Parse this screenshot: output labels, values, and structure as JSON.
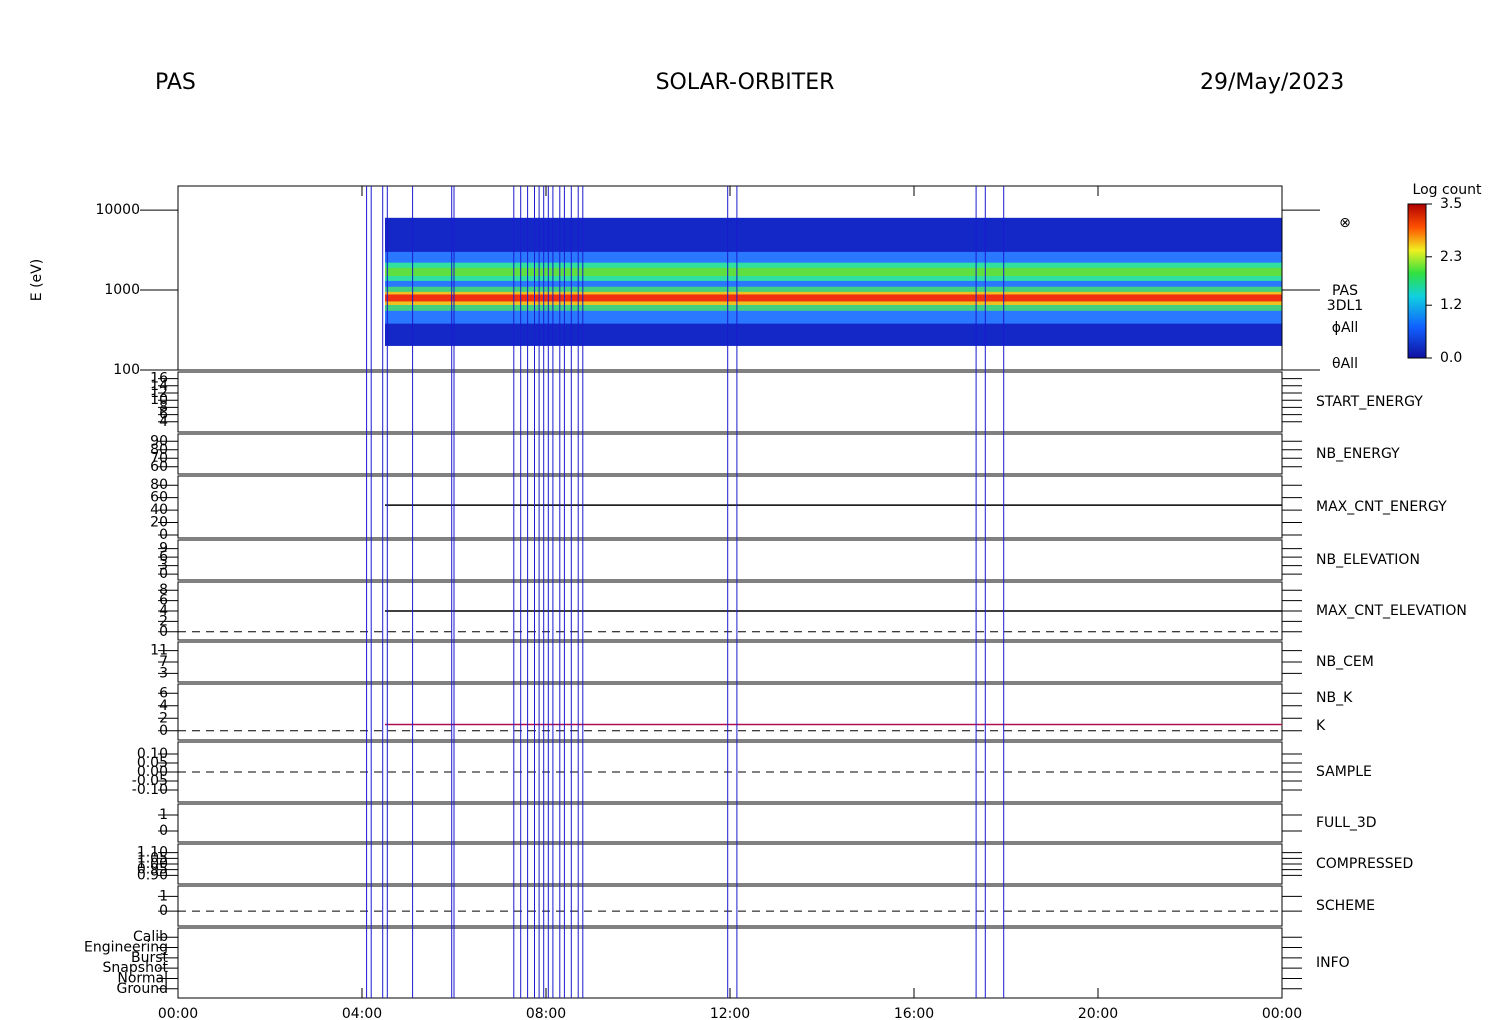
{
  "chart_data": {
    "type": "multi-panel",
    "header": {
      "left": "PAS",
      "center": "SOLAR-ORBITER",
      "right": "29/May/2023"
    },
    "xlim": [
      0,
      24
    ],
    "xticks": [
      {
        "value": 0,
        "label": "00:00"
      },
      {
        "value": 4,
        "label": "04:00"
      },
      {
        "value": 8,
        "label": "08:00"
      },
      {
        "value": 12,
        "label": "12:00"
      },
      {
        "value": 16,
        "label": "16:00"
      },
      {
        "value": 20,
        "label": "20:00"
      },
      {
        "value": 24,
        "label": "00:00"
      }
    ],
    "events": {
      "color": "#1a1ad0",
      "times": [
        4.1,
        4.2,
        4.45,
        4.55,
        5.1,
        5.95,
        6.0,
        7.3,
        7.45,
        7.6,
        7.75,
        7.85,
        7.95,
        8.05,
        8.15,
        8.3,
        8.4,
        8.55,
        8.7,
        8.8,
        11.95,
        12.15,
        17.35,
        17.55,
        17.95
      ]
    },
    "spectrogram": {
      "ylabel": "E (eV)",
      "log": true,
      "ylim": [
        100,
        20000
      ],
      "yticks": [
        100,
        1000,
        10000
      ],
      "start": 4.5,
      "bands": [
        {
          "range": [
            200,
            8000
          ],
          "color": "#1428c8"
        },
        {
          "range": [
            380,
            3000
          ],
          "color": "#2a78ff"
        },
        {
          "range": [
            1300,
            2200
          ],
          "color": "#30e0a0"
        },
        {
          "range": [
            1500,
            1900
          ],
          "color": "#60e040"
        },
        {
          "range": [
            550,
            1100
          ],
          "color": "#40d080"
        },
        {
          "range": [
            650,
            950
          ],
          "color": "#f0c020"
        },
        {
          "range": [
            720,
            880
          ],
          "color": "#f03010"
        }
      ],
      "symbol": "⊗",
      "side_labels": [
        "PAS",
        "3DL1",
        "ϕAll",
        "θAll"
      ],
      "colorbar": {
        "title": "Log count",
        "ticks": [
          {
            "value": 0,
            "label": "0.0"
          },
          {
            "value": 1.2,
            "label": "1.2"
          },
          {
            "value": 2.3,
            "label": "2.3"
          },
          {
            "value": 3.5,
            "label": "3.5"
          }
        ],
        "lim": [
          0,
          3.5
        ]
      }
    },
    "panels": [
      {
        "labels": [
          {
            "text": "START_ENERGY",
            "color": "#000000"
          }
        ],
        "ylim": [
          2,
          17
        ],
        "yticks": [
          4,
          6,
          8,
          10,
          12,
          14,
          16
        ]
      },
      {
        "labels": [
          {
            "text": "NB_ENERGY",
            "color": "#2020c0"
          }
        ],
        "ylim": [
          55,
          95
        ],
        "yticks": [
          60,
          70,
          80,
          90
        ]
      },
      {
        "labels": [
          {
            "text": "MAX_CNT_ENERGY",
            "color": "#000000"
          }
        ],
        "ylim": [
          0,
          90
        ],
        "yticks": [
          0,
          20,
          40,
          60,
          80
        ],
        "trace": {
          "from": 4.5,
          "value": 48,
          "color": "#000000"
        }
      },
      {
        "labels": [
          {
            "text": "NB_ELEVATION",
            "color": "#2020c0"
          }
        ],
        "ylim": [
          -1,
          11
        ],
        "yticks": [
          0,
          3,
          6,
          9
        ]
      },
      {
        "labels": [
          {
            "text": "MAX_CNT_ELEVATION",
            "color": "#000000"
          }
        ],
        "ylim": [
          -1,
          9
        ],
        "yticks": [
          0,
          2,
          4,
          6,
          8
        ],
        "dashed_zero": true,
        "trace": {
          "from": 4.5,
          "value": 4,
          "color": "#000000"
        }
      },
      {
        "labels": [
          {
            "text": "NB_CEM",
            "color": "#2020c0"
          }
        ],
        "ylim": [
          1,
          13
        ],
        "yticks": [
          3,
          7,
          11
        ]
      },
      {
        "labels": [
          {
            "text": "NB_K",
            "color": "#d00000"
          },
          {
            "text": "K",
            "color": "#2020c0"
          }
        ],
        "ylim": [
          -1,
          7
        ],
        "yticks": [
          0,
          2,
          4,
          6
        ],
        "dashed_zero": true,
        "trace": {
          "from": 4.5,
          "value": 1,
          "color": "#b01050"
        }
      },
      {
        "labels": [
          {
            "text": "SAMPLE",
            "color": "#2020c0"
          }
        ],
        "ylim": [
          -0.15,
          0.15
        ],
        "yticks": [
          {
            "value": -0.1,
            "label": "-0.10"
          },
          {
            "value": -0.05,
            "label": "-0.05"
          },
          {
            "value": 0,
            "label": "0.00"
          },
          {
            "value": 0.05,
            "label": "0.05"
          },
          {
            "value": 0.1,
            "label": "0.10"
          }
        ],
        "dashed_zero": true
      },
      {
        "labels": [
          {
            "text": "FULL_3D",
            "color": "#2020c0"
          }
        ],
        "ylim": [
          -0.5,
          1.5
        ],
        "yticks": [
          0,
          1
        ]
      },
      {
        "labels": [
          {
            "text": "COMPRESSED",
            "color": "#000000"
          }
        ],
        "ylim": [
          0.85,
          1.15
        ],
        "yticks": [
          {
            "value": 0.9,
            "label": "0.90"
          },
          {
            "value": 0.95,
            "label": "0.95"
          },
          {
            "value": 1,
            "label": "1.00"
          },
          {
            "value": 1.05,
            "label": "1.05"
          },
          {
            "value": 1.1,
            "label": "1.10"
          }
        ]
      },
      {
        "labels": [
          {
            "text": "SCHEME",
            "color": "#000000"
          }
        ],
        "ylim": [
          -0.8,
          1.5
        ],
        "yticks": [
          0,
          1
        ],
        "dashed_zero": true
      },
      {
        "labels": [
          {
            "text": "INFO",
            "color": "#000000"
          }
        ],
        "ylim": [
          -0.6,
          5.6
        ],
        "yticks": [
          {
            "value": 0,
            "label": "Ground"
          },
          {
            "value": 1,
            "label": "Normal"
          },
          {
            "value": 2,
            "label": "Snapshot"
          },
          {
            "value": 3,
            "label": "Burst"
          },
          {
            "value": 4,
            "label": "Engineering"
          },
          {
            "value": 5,
            "label": "Calib"
          }
        ]
      }
    ]
  }
}
